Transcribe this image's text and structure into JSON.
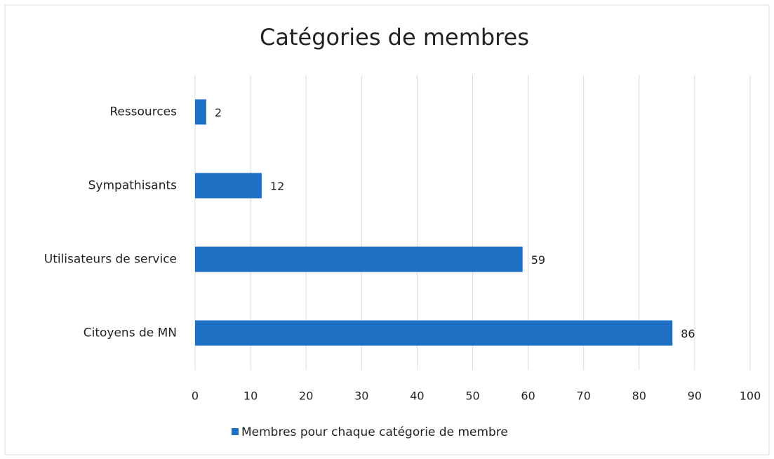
{
  "chart_data": {
    "type": "bar",
    "orientation": "horizontal",
    "title": "Catégories de membres",
    "categories": [
      "Ressources",
      "Sympathisants",
      "Utilisateurs de service",
      "Citoyens de MN"
    ],
    "series": [
      {
        "name": "Membres pour chaque catégorie de membre",
        "color": "#1f6fc5",
        "values": [
          2,
          12,
          59,
          86
        ]
      }
    ],
    "xlim": [
      0,
      100
    ],
    "xticks": [
      0,
      10,
      20,
      30,
      40,
      50,
      60,
      70,
      80,
      90,
      100
    ],
    "grid": true,
    "legend": "bottom"
  }
}
